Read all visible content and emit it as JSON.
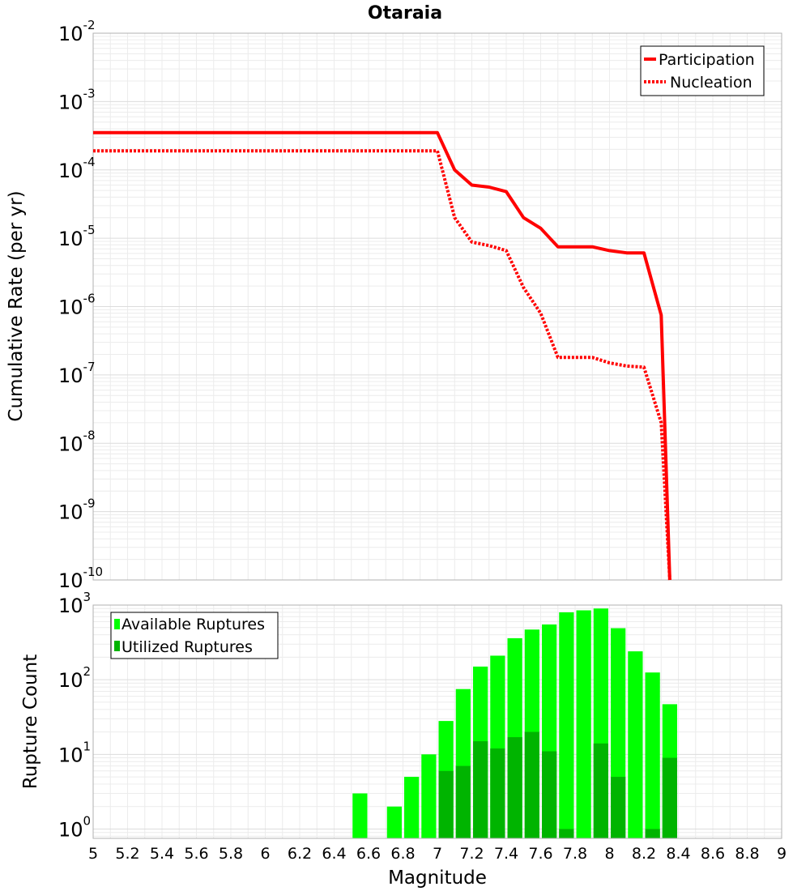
{
  "chart_data": [
    {
      "type": "line",
      "title": "Otaraia",
      "xlabel": "Magnitude",
      "ylabel": "Cumulative Rate (per yr)",
      "yscale": "log",
      "xlim": [
        5,
        9
      ],
      "ylim": [
        1e-10,
        0.01
      ],
      "ytick_exponents": [
        -2,
        -3,
        -4,
        -5,
        -6,
        -7,
        -8,
        -9,
        -10
      ],
      "legend_position": "top-right",
      "series": [
        {
          "name": "Participation",
          "color": "#ff0000",
          "style": "solid",
          "x": [
            5.0,
            7.0,
            7.1,
            7.2,
            7.3,
            7.4,
            7.5,
            7.6,
            7.7,
            7.8,
            7.9,
            8.0,
            8.1,
            8.2,
            8.3,
            8.35
          ],
          "y": [
            0.00035,
            0.00035,
            0.0001,
            6e-05,
            5.6e-05,
            4.8e-05,
            2e-05,
            1.4e-05,
            7.5e-06,
            7.5e-06,
            7.5e-06,
            6.6e-06,
            6.1e-06,
            6.1e-06,
            7.5e-07,
            1e-10
          ]
        },
        {
          "name": "Nucleation",
          "color": "#ff0000",
          "style": "dotted",
          "x": [
            5.0,
            7.0,
            7.1,
            7.2,
            7.3,
            7.4,
            7.5,
            7.6,
            7.7,
            7.8,
            7.9,
            8.0,
            8.1,
            8.2,
            8.3,
            8.35
          ],
          "y": [
            0.00019,
            0.00019,
            2e-05,
            8.8e-06,
            7.8e-06,
            6.6e-06,
            1.9e-06,
            8e-07,
            1.8e-07,
            1.8e-07,
            1.8e-07,
            1.5e-07,
            1.35e-07,
            1.3e-07,
            2e-08,
            1e-10
          ]
        }
      ]
    },
    {
      "type": "bar",
      "xlabel": "Magnitude",
      "ylabel": "Rupture Count",
      "yscale": "log",
      "xlim": [
        5,
        9
      ],
      "ylim": [
        0.75,
        1000
      ],
      "ytick_exponents": [
        3,
        2,
        1,
        0
      ],
      "xticks": [
        "5",
        "5.2",
        "5.4",
        "5.6",
        "5.8",
        "6",
        "6.2",
        "6.4",
        "6.6",
        "6.8",
        "7",
        "7.2",
        "7.4",
        "7.6",
        "7.8",
        "8",
        "8.2",
        "8.4",
        "8.6",
        "8.8",
        "9"
      ],
      "legend_position": "top-left",
      "bin_width": 0.1,
      "series": [
        {
          "name": "Available Ruptures",
          "color": "#00ff00",
          "x": [
            6.55,
            6.75,
            6.85,
            6.95,
            7.05,
            7.15,
            7.25,
            7.35,
            7.45,
            7.55,
            7.65,
            7.75,
            7.85,
            7.95,
            8.05,
            8.15,
            8.25,
            8.35
          ],
          "values": [
            3,
            2,
            5,
            10,
            28,
            75,
            150,
            210,
            360,
            470,
            550,
            800,
            850,
            900,
            490,
            240,
            125,
            47
          ]
        },
        {
          "name": "Utilized Ruptures",
          "color": "#00b400",
          "x": [
            7.05,
            7.15,
            7.25,
            7.35,
            7.45,
            7.55,
            7.65,
            7.75,
            7.95,
            8.05,
            8.25,
            8.35
          ],
          "values": [
            6,
            7,
            15,
            12,
            17,
            20,
            11,
            1,
            14,
            5,
            1,
            9
          ]
        }
      ]
    }
  ]
}
